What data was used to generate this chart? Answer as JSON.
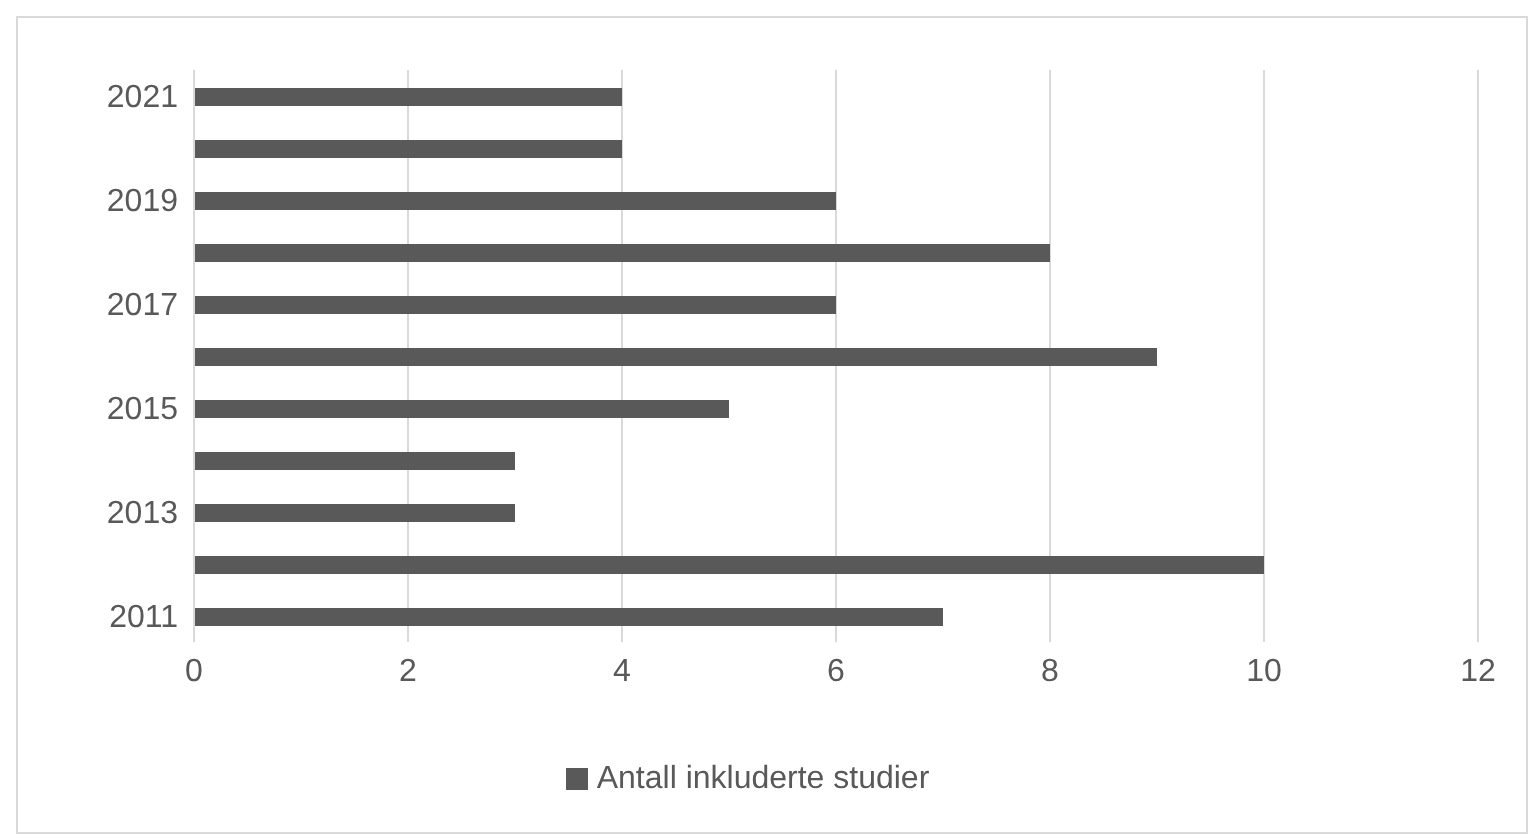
{
  "chart_data": {
    "type": "bar",
    "orientation": "horizontal",
    "categories": [
      "2021",
      null,
      "2019",
      null,
      "2017",
      null,
      "2015",
      null,
      "2013",
      null,
      "2011"
    ],
    "series": [
      {
        "name": "Antall inkluderte studier",
        "color": "#595959",
        "values": [
          4,
          4,
          6,
          8,
          6,
          9,
          5,
          3,
          3,
          10,
          7
        ]
      }
    ],
    "xlim": [
      0,
      12
    ],
    "xticks": [
      0,
      2,
      4,
      6,
      8,
      10,
      12
    ],
    "grid": "x",
    "legend": "bottom"
  }
}
